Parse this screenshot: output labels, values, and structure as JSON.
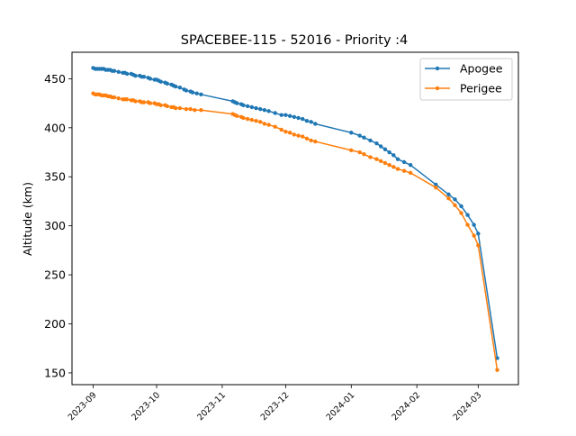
{
  "chart_data": {
    "type": "line",
    "title": "SPACEBEE-115 - 52016 - Priority :4",
    "xlabel": "",
    "ylabel": "Altitude (km)",
    "xlim": [
      "2023-08-22",
      "2024-03-20"
    ],
    "ylim": [
      138,
      477
    ],
    "x_ticks": [
      "2023-09",
      "2023-10",
      "2023-11",
      "2023-12",
      "2024-01",
      "2024-02",
      "2024-03"
    ],
    "y_ticks": [
      150,
      200,
      250,
      300,
      350,
      400,
      450
    ],
    "grid": false,
    "legend_position": "top-right",
    "series": [
      {
        "name": "Apogee",
        "color": "#1f77b4",
        "points": [
          [
            "2023-09-01",
            461
          ],
          [
            "2023-09-02",
            460
          ],
          [
            "2023-09-03",
            460
          ],
          [
            "2023-09-04",
            460
          ],
          [
            "2023-09-05",
            460
          ],
          [
            "2023-09-06",
            460
          ],
          [
            "2023-09-07",
            459
          ],
          [
            "2023-09-08",
            459
          ],
          [
            "2023-09-09",
            459
          ],
          [
            "2023-09-10",
            458
          ],
          [
            "2023-09-11",
            458
          ],
          [
            "2023-09-13",
            457
          ],
          [
            "2023-09-15",
            456
          ],
          [
            "2023-09-16",
            456
          ],
          [
            "2023-09-17",
            455
          ],
          [
            "2023-09-19",
            455
          ],
          [
            "2023-09-20",
            454
          ],
          [
            "2023-09-21",
            453
          ],
          [
            "2023-09-23",
            453
          ],
          [
            "2023-09-24",
            452
          ],
          [
            "2023-09-25",
            452
          ],
          [
            "2023-09-27",
            451
          ],
          [
            "2023-09-28",
            450
          ],
          [
            "2023-09-30",
            449
          ],
          [
            "2023-10-01",
            449
          ],
          [
            "2023-10-02",
            448
          ],
          [
            "2023-10-03",
            447
          ],
          [
            "2023-10-05",
            446
          ],
          [
            "2023-10-06",
            445
          ],
          [
            "2023-10-08",
            444
          ],
          [
            "2023-10-09",
            443
          ],
          [
            "2023-10-10",
            442
          ],
          [
            "2023-10-12",
            441
          ],
          [
            "2023-10-14",
            439
          ],
          [
            "2023-10-15",
            438
          ],
          [
            "2023-10-17",
            437
          ],
          [
            "2023-10-18",
            436
          ],
          [
            "2023-10-20",
            435
          ],
          [
            "2023-10-22",
            434
          ],
          [
            "2023-11-06",
            427
          ],
          [
            "2023-11-07",
            426
          ],
          [
            "2023-11-08",
            425
          ],
          [
            "2023-11-10",
            424
          ],
          [
            "2023-11-11",
            423
          ],
          [
            "2023-11-13",
            422
          ],
          [
            "2023-11-15",
            421
          ],
          [
            "2023-11-17",
            420
          ],
          [
            "2023-11-19",
            419
          ],
          [
            "2023-11-21",
            418
          ],
          [
            "2023-11-23",
            417
          ],
          [
            "2023-11-26",
            415
          ],
          [
            "2023-11-29",
            413
          ],
          [
            "2023-12-01",
            413
          ],
          [
            "2023-12-03",
            412
          ],
          [
            "2023-12-05",
            411
          ],
          [
            "2023-12-07",
            410
          ],
          [
            "2023-12-09",
            409
          ],
          [
            "2023-12-11",
            407
          ],
          [
            "2023-12-13",
            406
          ],
          [
            "2023-12-15",
            404
          ],
          [
            "2024-01-01",
            395
          ],
          [
            "2024-01-05",
            392
          ],
          [
            "2024-01-07",
            390
          ],
          [
            "2024-01-10",
            387
          ],
          [
            "2024-01-13",
            384
          ],
          [
            "2024-01-15",
            381
          ],
          [
            "2024-01-17",
            378
          ],
          [
            "2024-01-19",
            375
          ],
          [
            "2024-01-21",
            372
          ],
          [
            "2024-01-23",
            368
          ],
          [
            "2024-01-26",
            365
          ],
          [
            "2024-01-29",
            362
          ],
          [
            "2024-02-10",
            342
          ],
          [
            "2024-02-16",
            332
          ],
          [
            "2024-02-19",
            327
          ],
          [
            "2024-02-22",
            320
          ],
          [
            "2024-02-25",
            311
          ],
          [
            "2024-02-28",
            301
          ],
          [
            "2024-03-01",
            292
          ],
          [
            "2024-03-10",
            165
          ]
        ]
      },
      {
        "name": "Perigee",
        "color": "#ff7f0e",
        "points": [
          [
            "2023-09-01",
            435
          ],
          [
            "2023-09-02",
            434
          ],
          [
            "2023-09-03",
            434
          ],
          [
            "2023-09-04",
            434
          ],
          [
            "2023-09-05",
            433
          ],
          [
            "2023-09-06",
            433
          ],
          [
            "2023-09-07",
            433
          ],
          [
            "2023-09-08",
            432
          ],
          [
            "2023-09-09",
            432
          ],
          [
            "2023-09-10",
            431
          ],
          [
            "2023-09-11",
            431
          ],
          [
            "2023-09-13",
            430
          ],
          [
            "2023-09-15",
            429
          ],
          [
            "2023-09-16",
            429
          ],
          [
            "2023-09-17",
            429
          ],
          [
            "2023-09-19",
            428
          ],
          [
            "2023-09-20",
            428
          ],
          [
            "2023-09-21",
            427
          ],
          [
            "2023-09-23",
            427
          ],
          [
            "2023-09-24",
            426
          ],
          [
            "2023-09-25",
            426
          ],
          [
            "2023-09-27",
            426
          ],
          [
            "2023-09-28",
            425
          ],
          [
            "2023-09-30",
            425
          ],
          [
            "2023-10-01",
            424
          ],
          [
            "2023-10-02",
            424
          ],
          [
            "2023-10-03",
            423
          ],
          [
            "2023-10-05",
            423
          ],
          [
            "2023-10-06",
            422
          ],
          [
            "2023-10-08",
            421
          ],
          [
            "2023-10-09",
            421
          ],
          [
            "2023-10-10",
            420
          ],
          [
            "2023-10-12",
            420
          ],
          [
            "2023-10-15",
            419
          ],
          [
            "2023-10-17",
            419
          ],
          [
            "2023-10-19",
            418
          ],
          [
            "2023-10-22",
            418
          ],
          [
            "2023-11-06",
            414
          ],
          [
            "2023-11-07",
            413
          ],
          [
            "2023-11-08",
            412
          ],
          [
            "2023-11-10",
            411
          ],
          [
            "2023-11-11",
            410
          ],
          [
            "2023-11-13",
            409
          ],
          [
            "2023-11-15",
            408
          ],
          [
            "2023-11-17",
            407
          ],
          [
            "2023-11-19",
            406
          ],
          [
            "2023-11-21",
            404
          ],
          [
            "2023-11-23",
            403
          ],
          [
            "2023-11-26",
            401
          ],
          [
            "2023-11-29",
            398
          ],
          [
            "2023-12-01",
            396
          ],
          [
            "2023-12-03",
            395
          ],
          [
            "2023-12-05",
            393
          ],
          [
            "2023-12-07",
            392
          ],
          [
            "2023-12-09",
            391
          ],
          [
            "2023-12-11",
            389
          ],
          [
            "2023-12-13",
            387
          ],
          [
            "2023-12-15",
            386
          ],
          [
            "2024-01-01",
            377
          ],
          [
            "2024-01-05",
            375
          ],
          [
            "2024-01-07",
            373
          ],
          [
            "2024-01-10",
            370
          ],
          [
            "2024-01-13",
            368
          ],
          [
            "2024-01-15",
            366
          ],
          [
            "2024-01-17",
            364
          ],
          [
            "2024-01-19",
            362
          ],
          [
            "2024-01-21",
            360
          ],
          [
            "2024-01-23",
            358
          ],
          [
            "2024-01-26",
            356
          ],
          [
            "2024-01-29",
            354
          ],
          [
            "2024-02-10",
            339
          ],
          [
            "2024-02-16",
            328
          ],
          [
            "2024-02-19",
            321
          ],
          [
            "2024-02-22",
            313
          ],
          [
            "2024-02-25",
            301
          ],
          [
            "2024-02-28",
            290
          ],
          [
            "2024-03-01",
            280
          ],
          [
            "2024-03-10",
            153
          ]
        ]
      }
    ]
  }
}
